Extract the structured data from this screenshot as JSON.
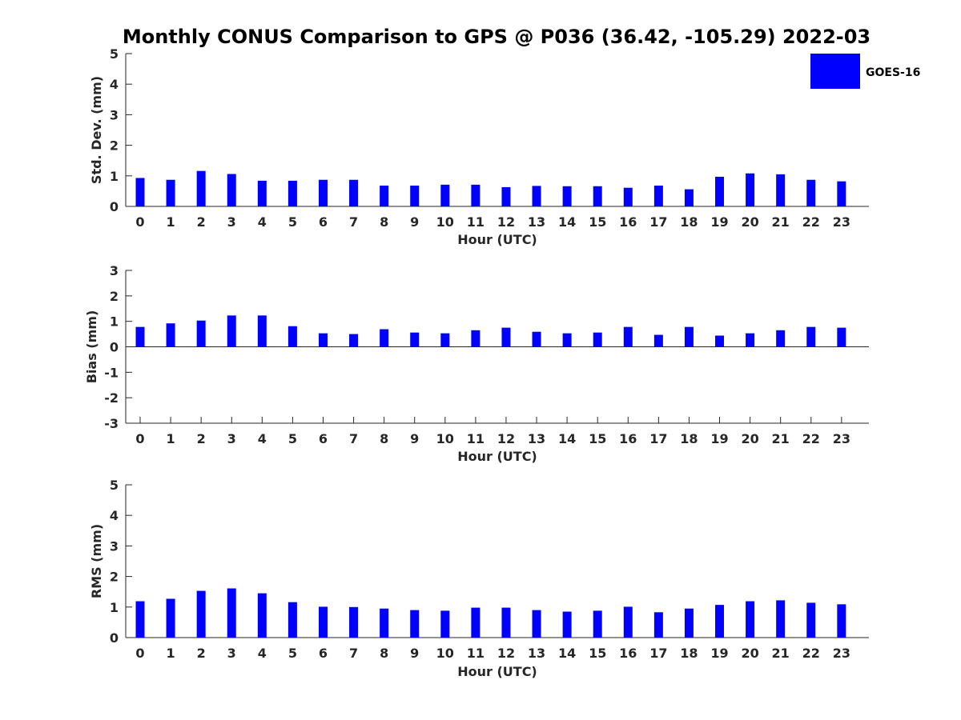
{
  "figure": {
    "title": "Monthly CONUS Comparison to GPS @ P036 (36.42, -105.29) 2022-03",
    "legend": {
      "label": "GOES-16",
      "color": "#0000ff",
      "placement": "top-right"
    }
  },
  "chart_data": [
    {
      "type": "bar",
      "xlabel": "Hour (UTC)",
      "ylabel": "Std. Dev. (mm)",
      "ylim": [
        0,
        5
      ],
      "yticks": [
        0,
        1,
        2,
        3,
        4,
        5
      ],
      "categories": [
        "0",
        "1",
        "2",
        "3",
        "4",
        "5",
        "6",
        "7",
        "8",
        "9",
        "10",
        "11",
        "12",
        "13",
        "14",
        "15",
        "16",
        "17",
        "18",
        "19",
        "20",
        "21",
        "22",
        "23"
      ],
      "series": [
        {
          "name": "GOES-16",
          "color": "#0000ff",
          "values": [
            0.93,
            0.87,
            1.16,
            1.06,
            0.84,
            0.84,
            0.87,
            0.87,
            0.68,
            0.68,
            0.71,
            0.71,
            0.63,
            0.67,
            0.66,
            0.66,
            0.61,
            0.68,
            0.56,
            0.97,
            1.08,
            1.05,
            0.87,
            0.82
          ]
        }
      ],
      "grid": false
    },
    {
      "type": "bar",
      "xlabel": "Hour (UTC)",
      "ylabel": "Bias (mm)",
      "ylim": [
        -3,
        3
      ],
      "yticks": [
        -3,
        -2,
        -1,
        0,
        1,
        2,
        3
      ],
      "categories": [
        "0",
        "1",
        "2",
        "3",
        "4",
        "5",
        "6",
        "7",
        "8",
        "9",
        "10",
        "11",
        "12",
        "13",
        "14",
        "15",
        "16",
        "17",
        "18",
        "19",
        "20",
        "21",
        "22",
        "23"
      ],
      "series": [
        {
          "name": "GOES-16",
          "color": "#0000ff",
          "values": [
            0.78,
            0.92,
            1.03,
            1.23,
            1.23,
            0.81,
            0.53,
            0.5,
            0.69,
            0.56,
            0.53,
            0.65,
            0.75,
            0.59,
            0.53,
            0.56,
            0.78,
            0.47,
            0.78,
            0.44,
            0.53,
            0.65,
            0.78,
            0.75
          ]
        }
      ],
      "grid": false
    },
    {
      "type": "bar",
      "xlabel": "Hour (UTC)",
      "ylabel": "RMS (mm)",
      "ylim": [
        0,
        5
      ],
      "yticks": [
        0,
        1,
        2,
        3,
        4,
        5
      ],
      "categories": [
        "0",
        "1",
        "2",
        "3",
        "4",
        "5",
        "6",
        "7",
        "8",
        "9",
        "10",
        "11",
        "12",
        "13",
        "14",
        "15",
        "16",
        "17",
        "18",
        "19",
        "20",
        "21",
        "22",
        "23"
      ],
      "series": [
        {
          "name": "GOES-16",
          "color": "#0000ff",
          "values": [
            1.19,
            1.27,
            1.53,
            1.61,
            1.45,
            1.16,
            1.01,
            1.0,
            0.95,
            0.9,
            0.88,
            0.98,
            0.98,
            0.9,
            0.85,
            0.88,
            1.01,
            0.83,
            0.95,
            1.07,
            1.19,
            1.22,
            1.14,
            1.09
          ]
        }
      ],
      "grid": false
    }
  ]
}
